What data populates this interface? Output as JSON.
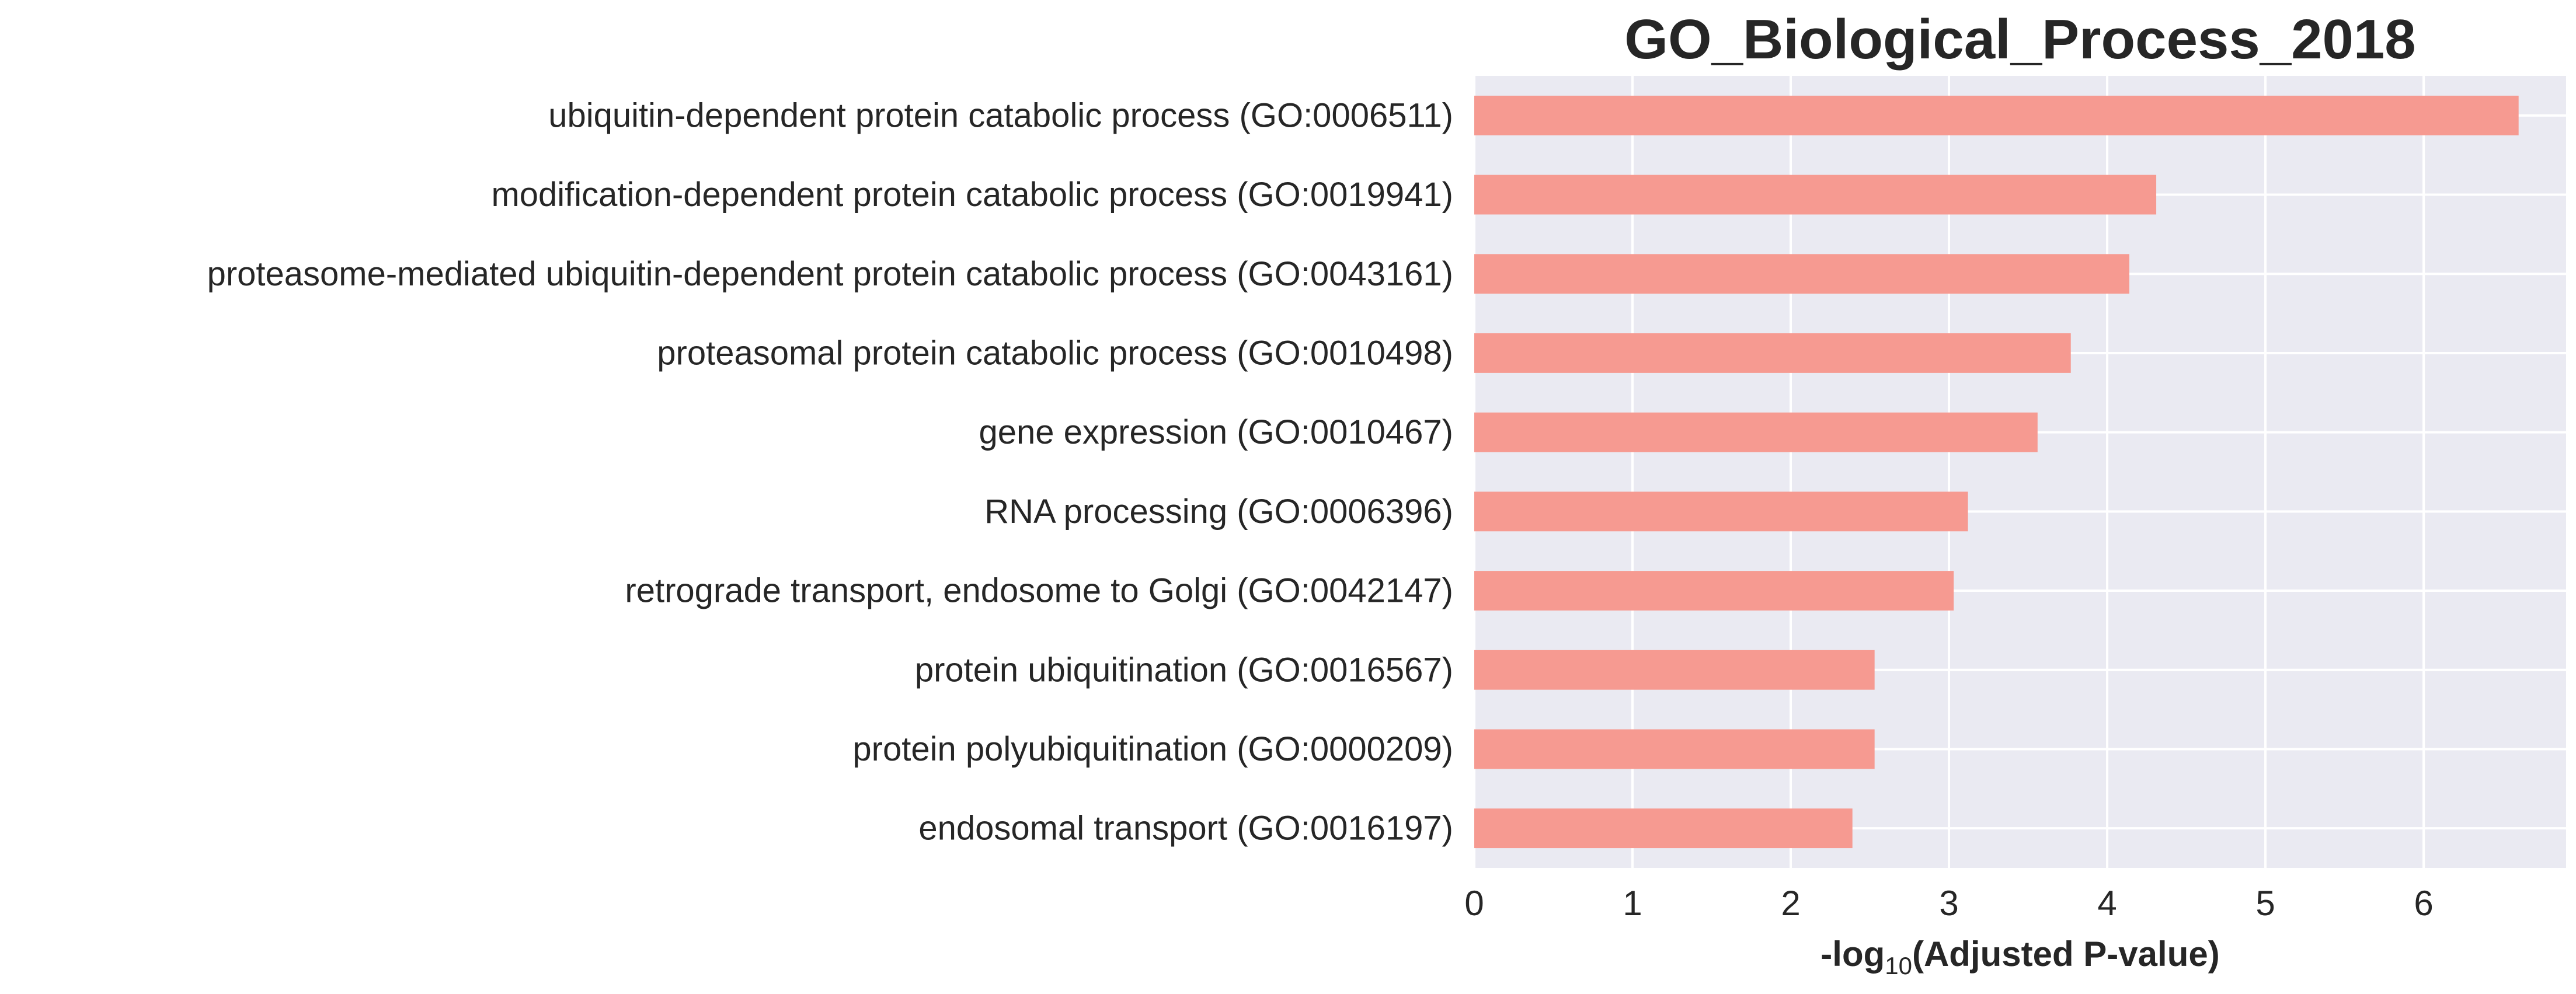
{
  "chart_data": {
    "type": "bar",
    "orientation": "horizontal",
    "title": "GO_Biological_Process_2018",
    "xlabel": {
      "prefix": "-log",
      "subscript": "10",
      "suffix": "(Adjusted P-value)"
    },
    "ylabel": "",
    "xlim": [
      0,
      6.9
    ],
    "xticks": [
      0,
      1,
      2,
      3,
      4,
      5,
      6
    ],
    "grid": true,
    "bar_color": "#f69a91",
    "background_color": "#eaeaf2",
    "categories": [
      "ubiquitin-dependent protein catabolic process (GO:0006511)",
      "modification-dependent protein catabolic process (GO:0019941)",
      "proteasome-mediated ubiquitin-dependent protein catabolic process (GO:0043161)",
      "proteasomal protein catabolic process (GO:0010498)",
      "gene expression (GO:0010467)",
      "RNA processing (GO:0006396)",
      "retrograde transport, endosome to Golgi (GO:0042147)",
      "protein ubiquitination (GO:0016567)",
      "protein polyubiquitination (GO:0000209)",
      "endosomal transport (GO:0016197)"
    ],
    "values": [
      6.6,
      4.31,
      4.14,
      3.77,
      3.56,
      3.12,
      3.03,
      2.53,
      2.53,
      2.39
    ]
  }
}
